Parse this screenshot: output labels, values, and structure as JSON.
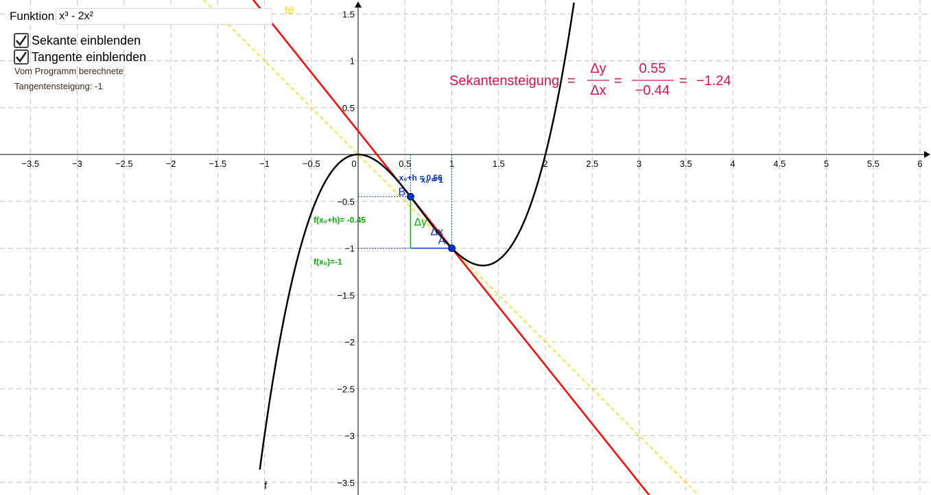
{
  "app": {
    "function_label": "Funktion",
    "function_value": "x³ - 2x²",
    "checkboxes": [
      {
        "label": "Sekante einblenden",
        "checked": true
      },
      {
        "label": "Tangente einblenden",
        "checked": true
      }
    ],
    "info_line1": "Vom Programm berechnete",
    "info_line2": "Tangentensteigung: -1"
  },
  "graph": {
    "xlim": [
      -3.8,
      6.1
    ],
    "ylim": [
      -3.65,
      1.6
    ],
    "x_ticks": [
      "−3.5",
      "−3",
      "−2.5",
      "−2",
      "−1.5",
      "−1",
      "−0.5",
      "0",
      "0.5",
      "1",
      "1.5",
      "2",
      "2.5",
      "3",
      "3.5",
      "4",
      "4.5",
      "5",
      "5.5",
      "6"
    ],
    "y_ticks": [
      "1.5",
      "1",
      "0.5",
      "−0.5",
      "−1",
      "−1.5",
      "−2",
      "−2.5",
      "−3",
      "−3.5"
    ],
    "curve_label": "f",
    "point_A": {
      "label": "A",
      "x": 1,
      "y": -1
    },
    "point_B": {
      "label": "B",
      "x": 0.56,
      "y": -0.45
    },
    "delta_x_label": "Δx",
    "delta_y_label": "Δy",
    "x_marker_label": "x₀+h = 0.56",
    "x0_marker_label": "x₀ = 1",
    "fx0h_label": "f(x₀+h)= -0.45",
    "fx0_label": "f(x₀)=-1",
    "secant_formula": {
      "prefix": "Sekantensteigung",
      "num_sym": "Δy",
      "den_sym": "Δx",
      "num_val": "0.55",
      "den_val": "−0.44",
      "result": "−1.24"
    },
    "tangent_partial_label": "te",
    "colors": {
      "curve": "#000000",
      "secant": "#ff0000",
      "tangent": "#ffd700",
      "points": "#0033cc",
      "delta_y": "#00b000",
      "delta_x": "#0033cc",
      "formula": "#e0104a",
      "grid": "#c0c0c0"
    }
  }
}
